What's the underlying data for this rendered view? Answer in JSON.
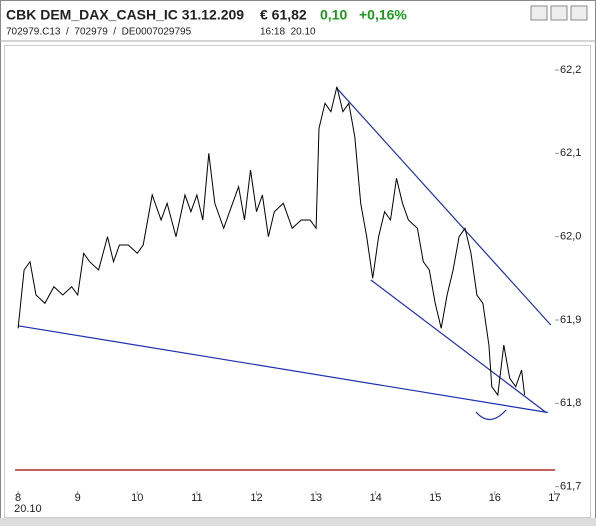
{
  "header": {
    "title": "CBK DEM_DAX_CASH_IC 31.12.209",
    "price": "€ 61,82",
    "change": "0,10",
    "change_pct": "+0,16%",
    "codes": "702979.C13  /  702979  /  DE0007029795",
    "time": "16:18  20.10"
  },
  "chart_data": {
    "type": "line",
    "color": "#000000",
    "x": [
      8.0,
      8.1,
      8.2,
      8.3,
      8.45,
      8.6,
      8.75,
      8.9,
      9.0,
      9.1,
      9.2,
      9.35,
      9.5,
      9.6,
      9.7,
      9.85,
      10.0,
      10.1,
      10.25,
      10.4,
      10.5,
      10.65,
      10.8,
      10.9,
      11.0,
      11.1,
      11.2,
      11.3,
      11.45,
      11.55,
      11.7,
      11.8,
      11.9,
      12.0,
      12.1,
      12.2,
      12.3,
      12.45,
      12.6,
      12.75,
      12.9,
      13.0,
      13.05,
      13.15,
      13.25,
      13.35,
      13.45,
      13.55,
      13.65,
      13.75,
      13.85,
      13.95,
      14.05,
      14.15,
      14.25,
      14.35,
      14.45,
      14.55,
      14.7,
      14.8,
      14.9,
      15.0,
      15.1,
      15.2,
      15.3,
      15.4,
      15.5,
      15.6,
      15.7,
      15.8,
      15.9,
      15.95,
      16.05,
      16.15,
      16.25,
      16.35,
      16.45,
      16.5
    ],
    "values": [
      61.89,
      61.96,
      61.97,
      61.93,
      61.92,
      61.94,
      61.93,
      61.94,
      61.93,
      61.98,
      61.97,
      61.96,
      62.0,
      61.97,
      61.99,
      61.99,
      61.98,
      61.99,
      62.05,
      62.02,
      62.04,
      62.0,
      62.05,
      62.03,
      62.05,
      62.02,
      62.1,
      62.04,
      62.01,
      62.03,
      62.06,
      62.02,
      62.08,
      62.03,
      62.05,
      62.0,
      62.03,
      62.04,
      62.01,
      62.02,
      62.02,
      62.01,
      62.13,
      62.16,
      62.15,
      62.18,
      62.15,
      62.16,
      62.12,
      62.04,
      62.0,
      61.95,
      62.0,
      62.03,
      62.02,
      62.07,
      62.04,
      62.02,
      62.01,
      61.97,
      61.96,
      61.92,
      61.89,
      61.93,
      61.96,
      62.0,
      62.01,
      61.98,
      61.93,
      61.92,
      61.87,
      61.82,
      61.81,
      61.87,
      61.83,
      61.82,
      61.84,
      61.81
    ],
    "trend_lines": [
      {
        "color": "#1f2fb0",
        "x": [
          8.0,
          16.89
        ],
        "values": [
          61.893,
          61.789
        ]
      },
      {
        "color": "#1f2fb0",
        "x": [
          13.35,
          16.94
        ],
        "values": [
          62.178,
          61.894
        ]
      },
      {
        "color": "#1f2fb0",
        "x": [
          13.92,
          16.86
        ],
        "values": [
          61.948,
          61.789
        ]
      }
    ],
    "reference_line": {
      "value": 61.72,
      "color": "#a00000"
    },
    "xlim": [
      7.78,
      17.01
    ],
    "ylim": [
      61.69,
      62.23
    ],
    "xticks": [
      8,
      9,
      10,
      11,
      12,
      13,
      14,
      15,
      16,
      17
    ],
    "x_date_label": "20.10",
    "yticks": [
      {
        "value": 61.7,
        "label": "61,7"
      },
      {
        "value": 61.8,
        "label": "61,8"
      },
      {
        "value": 61.9,
        "label": "61,9"
      },
      {
        "value": 62.0,
        "label": "62,0"
      },
      {
        "value": 62.1,
        "label": "62,1"
      },
      {
        "value": 62.2,
        "label": "62,2"
      }
    ],
    "grid": false
  }
}
